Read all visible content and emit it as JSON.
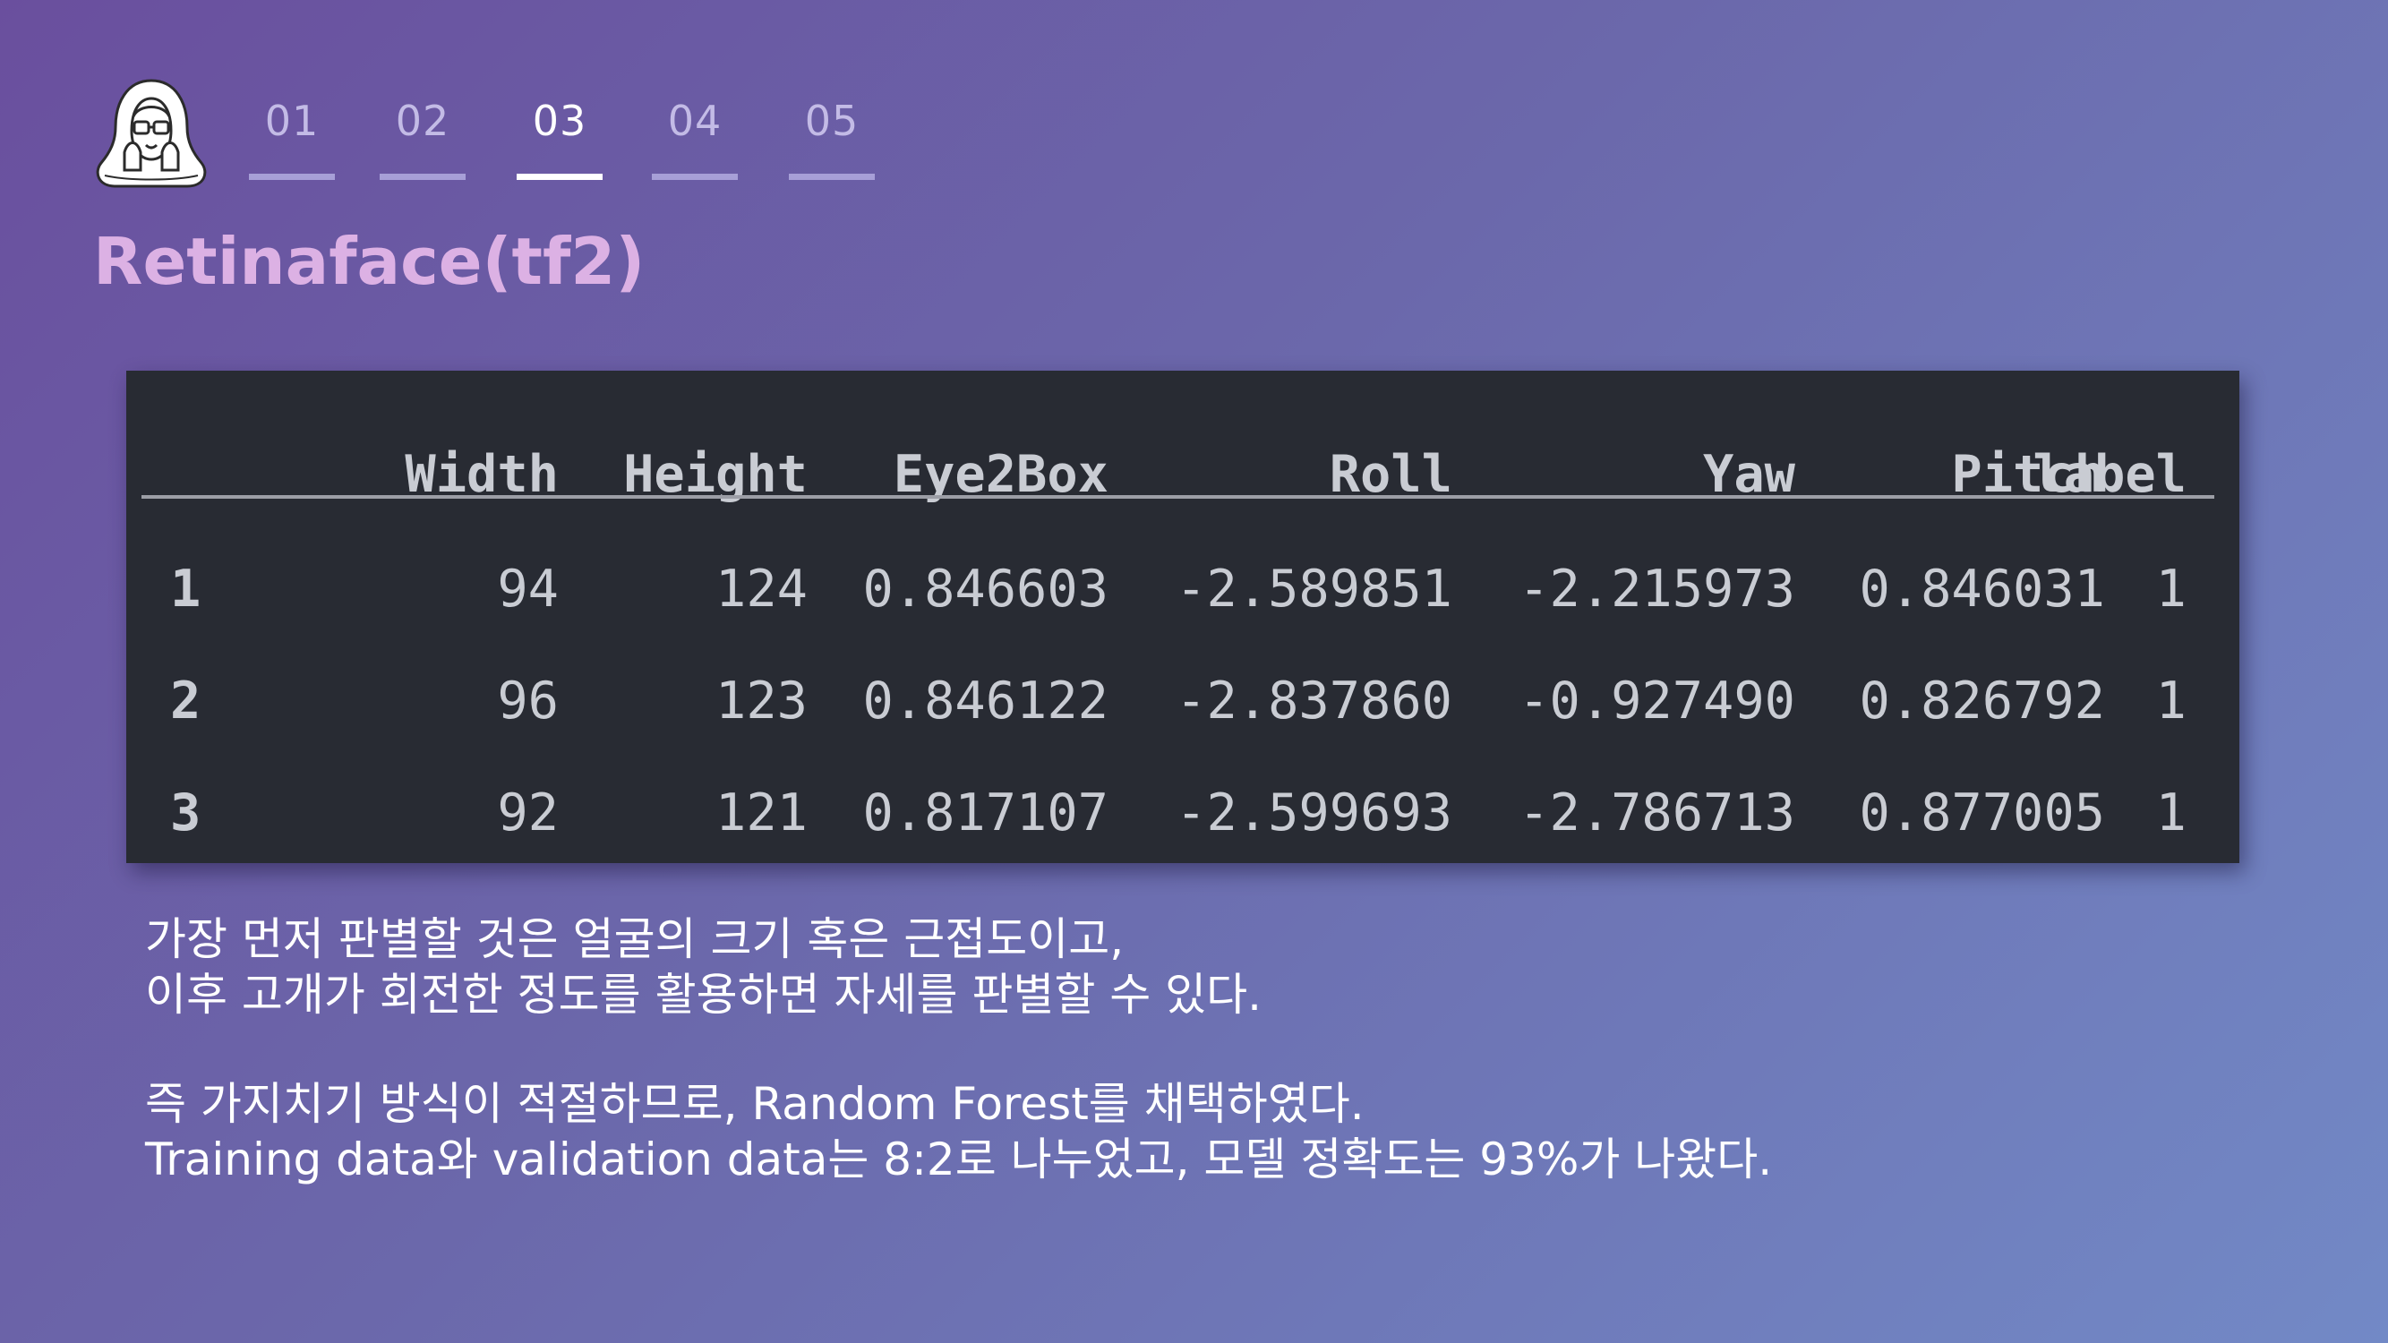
{
  "nav": {
    "steps": [
      "01",
      "02",
      "03",
      "04",
      "05"
    ],
    "active_step": "03"
  },
  "title": "Retinaface(tf2)",
  "table": {
    "columns": [
      "Width",
      "Height",
      "Eye2Box",
      "Roll",
      "Yaw",
      "Pitch",
      "label"
    ],
    "rows": [
      {
        "index": "1",
        "values": [
          "94",
          "124",
          "0.846603",
          "-2.589851",
          "-2.215973",
          "0.846031",
          "1"
        ]
      },
      {
        "index": "2",
        "values": [
          "96",
          "123",
          "0.846122",
          "-2.837860",
          "-0.927490",
          "0.826792",
          "1"
        ]
      },
      {
        "index": "3",
        "values": [
          "92",
          "121",
          "0.817107",
          "-2.599693",
          "-2.786713",
          "0.877005",
          "1"
        ]
      }
    ]
  },
  "notes": {
    "line1": "가장 먼저 판별할 것은 얼굴의 크기 혹은 근접도이고,",
    "line2": "이후 고개가 회전한 정도를 활용하면 자세를 판별할 수 있다.",
    "line3": "즉 가지치기 방식이 적절하므로, Random Forest를 채택하였다.",
    "line4": "Training data와 validation data는 8:2로 나누었고, 모델 정확도는 93%가 나왔다."
  },
  "colors": {
    "background_start": "#6a4f9e",
    "background_end": "#7289c6",
    "title": "#dcb1e4",
    "panel": "#282b33",
    "panel_text": "#c9ccd3",
    "active_step": "#ffffff",
    "inactive_step": "#c3bbe6"
  },
  "icons": {
    "avatar": "hooded-character-with-glasses-icon"
  }
}
